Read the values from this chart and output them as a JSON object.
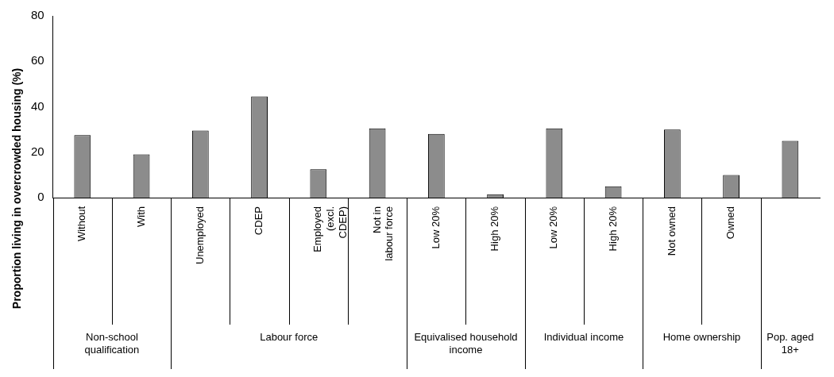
{
  "chart_data": {
    "type": "bar",
    "ylabel": "Proportion living in overcrowded housing (%)",
    "categories": [
      "Without",
      "With",
      "Unemployed",
      "CDEP",
      "Employed (excl. CDEP)",
      "Not in labour force",
      "Low 20%",
      "High 20%",
      "Low 20%",
      "High 20%",
      "Not owned",
      "Owned",
      null
    ],
    "values": [
      27.5,
      19,
      29.5,
      44.5,
      12.5,
      30.5,
      28,
      1.5,
      30.5,
      5,
      30,
      10,
      25
    ],
    "color": "#8c8c8c",
    "ylim": [
      0,
      80
    ],
    "yticks": [
      0,
      20,
      40,
      60,
      80
    ],
    "annotations": [
      "Non-school qualification",
      "Labour force",
      "Equivalised household income",
      "Individual income",
      "Home ownership",
      "Pop. aged 18+"
    ]
  }
}
